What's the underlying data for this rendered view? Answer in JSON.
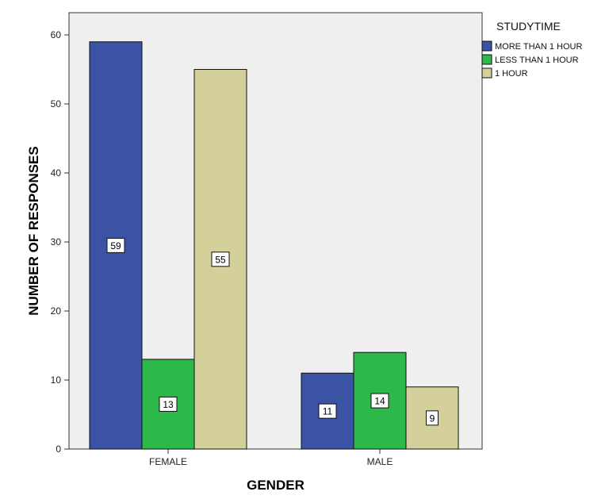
{
  "chart_data": {
    "type": "bar",
    "categories": [
      "FEMALE",
      "MALE"
    ],
    "series": [
      {
        "name": "MORE THAN 1 HOUR",
        "color": "#3A53A4",
        "values": [
          59,
          11
        ]
      },
      {
        "name": "LESS THAN 1 HOUR",
        "color": "#2DB84A",
        "values": [
          13,
          14
        ]
      },
      {
        "name": "1 HOUR",
        "color": "#D4D09C",
        "values": [
          55,
          9
        ]
      }
    ],
    "xlabel": "GENDER",
    "ylabel": "NUMBER OF RESPONSES",
    "ylim": [
      0,
      60
    ],
    "yticks": [
      0,
      10,
      20,
      30,
      40,
      50,
      60
    ],
    "legend_title": "STUDYTIME",
    "legend_position": "right",
    "grid": false,
    "plot_background": "#EFEFEF"
  }
}
